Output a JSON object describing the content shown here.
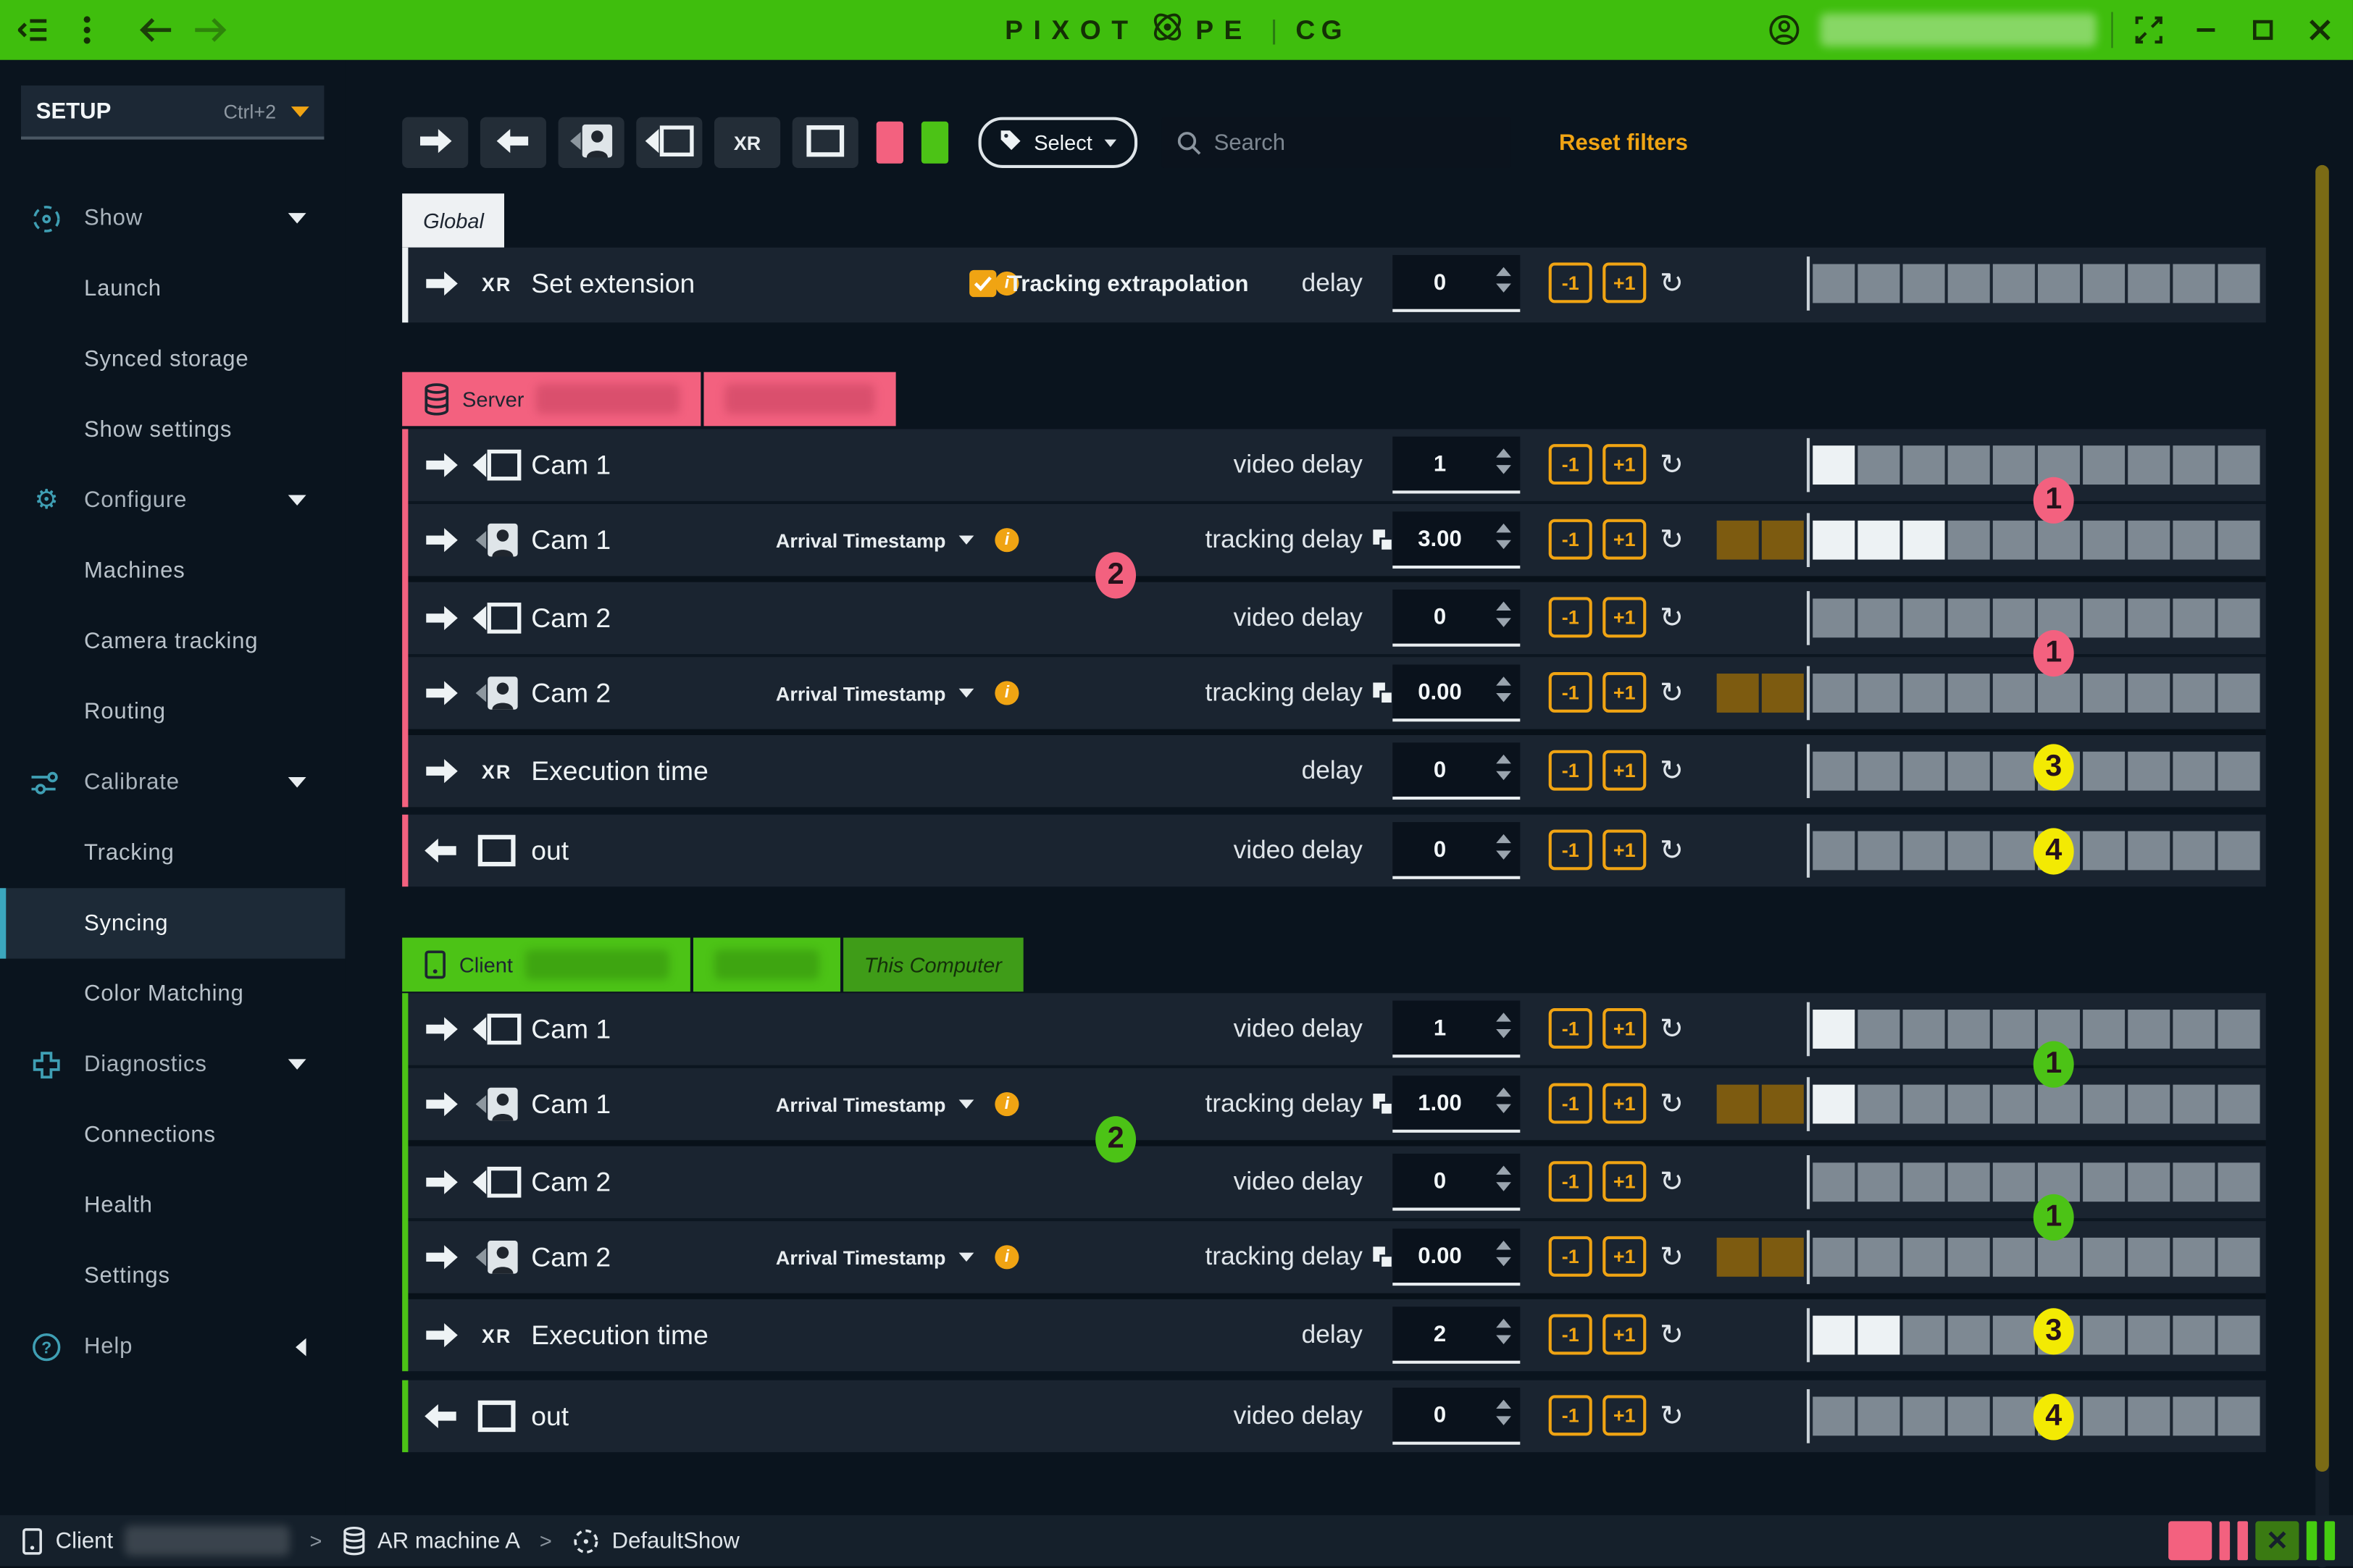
{
  "palette": {
    "topbar_green": "#3FBE0D",
    "amber": "#F0A413",
    "pink": "#F3617F",
    "green": "#4CC316",
    "dark_green_tab": "#3F9C18",
    "yellow_badge": "#F3EA03",
    "brown_block": "#7D5B10",
    "gray_block": "#7E8993",
    "white_block": "#EDF2F4",
    "card_bg": "#1A2430"
  },
  "titlebar": {
    "logo_pre": "PIXOT",
    "logo_post": "PE",
    "divider": "|",
    "product": "CG",
    "user_redacted": true
  },
  "sidebar": {
    "workspace": {
      "label": "SETUP",
      "shortcut": "Ctrl+2"
    },
    "items": [
      {
        "kind": "group",
        "icon": "show-icon",
        "label": "Show",
        "expanded": true
      },
      {
        "kind": "item",
        "label": "Launch"
      },
      {
        "kind": "item",
        "label": "Synced storage"
      },
      {
        "kind": "item",
        "label": "Show settings"
      },
      {
        "kind": "group",
        "icon": "gear-icon",
        "label": "Configure",
        "expanded": true
      },
      {
        "kind": "item",
        "label": "Machines"
      },
      {
        "kind": "item",
        "label": "Camera tracking"
      },
      {
        "kind": "item",
        "label": "Routing"
      },
      {
        "kind": "group",
        "icon": "sliders-icon",
        "label": "Calibrate",
        "expanded": true
      },
      {
        "kind": "item",
        "label": "Tracking"
      },
      {
        "kind": "item",
        "label": "Syncing",
        "active": true
      },
      {
        "kind": "item",
        "label": "Color Matching"
      },
      {
        "kind": "group",
        "icon": "diagnostics-icon",
        "label": "Diagnostics",
        "expanded": true
      },
      {
        "kind": "item",
        "label": "Connections"
      },
      {
        "kind": "item",
        "label": "Health"
      },
      {
        "kind": "item",
        "label": "Settings"
      },
      {
        "kind": "group",
        "icon": "help-icon",
        "label": "Help",
        "expanded": false
      }
    ]
  },
  "toolbar": {
    "filter_buttons": [
      "forward-arrow-filter",
      "back-arrow-filter",
      "camera-tracking-filter",
      "video-camera-filter",
      "xr-filter",
      "out-filter"
    ],
    "xr_label": "XR",
    "swatches": [
      "#F3617F",
      "#4CC316"
    ],
    "select_label": "Select",
    "search_placeholder": "Search",
    "reset_label": "Reset filters"
  },
  "global_section": {
    "tab": "Global",
    "row": {
      "dir": "right",
      "type_label": "XR",
      "label": "Set extension",
      "info": true,
      "checkbox_label": "Tracking extrapolation",
      "checked": true,
      "delay_label": "delay",
      "value": "0",
      "pre": 0,
      "filled": 0,
      "total": 10
    }
  },
  "sections": [
    {
      "id": "server",
      "accent": "#F3617F",
      "tabs": [
        {
          "icon": "database-icon",
          "label": "Server",
          "redacted": true,
          "redact_w": 96
        },
        {
          "label": "",
          "redacted": true,
          "redact_w": 100
        }
      ],
      "rows": [
        {
          "kind": "video",
          "dir": "right",
          "icon": "video-camera-icon",
          "label": "Cam 1",
          "delay_label": "video delay",
          "value": "1",
          "pre": 0,
          "filled": 1
        },
        {
          "kind": "tracking",
          "dir": "right",
          "icon": "camera-tracking-icon",
          "label": "Cam 1",
          "dropdown": "Arrival Timestamp",
          "info": true,
          "delay_label": "tracking delay",
          "copy": true,
          "value": "3.00",
          "pre": 2,
          "filled": 3
        },
        {
          "kind": "video",
          "dir": "right",
          "icon": "video-camera-icon",
          "label": "Cam 2",
          "delay_label": "video delay",
          "value": "0",
          "pre": 0,
          "filled": 0
        },
        {
          "kind": "tracking",
          "dir": "right",
          "icon": "camera-tracking-icon",
          "label": "Cam 2",
          "dropdown": "Arrival Timestamp",
          "info": true,
          "delay_label": "tracking delay",
          "copy": true,
          "value": "0.00",
          "pre": 2,
          "filled": 0
        },
        {
          "kind": "exec",
          "dir": "right",
          "type_label": "XR",
          "label": "Execution time",
          "delay_label": "delay",
          "value": "0",
          "pre": 0,
          "filled": 0
        }
      ],
      "out_row": {
        "dir": "left",
        "icon": "out-rect-icon",
        "label": "out",
        "delay_label": "video delay",
        "value": "0",
        "pre": 0,
        "filled": 0
      },
      "badges": [
        {
          "n": "1",
          "slot": "right1",
          "color": "pink"
        },
        {
          "n": "2",
          "slot": "mid1",
          "color": "pink"
        },
        {
          "n": "1",
          "slot": "right2",
          "color": "pink"
        },
        {
          "n": "3",
          "slot": "exec",
          "color": "yellow"
        },
        {
          "n": "4",
          "slot": "out",
          "color": "yellow"
        }
      ]
    },
    {
      "id": "client",
      "accent": "#4CC316",
      "tabs": [
        {
          "icon": "client-icon",
          "label": "Client",
          "redacted": true,
          "redact_w": 96
        },
        {
          "label": "",
          "redacted": true,
          "redact_w": 70
        },
        {
          "label": "This Computer",
          "variant": "darkgreen"
        }
      ],
      "rows": [
        {
          "kind": "video",
          "dir": "right",
          "icon": "video-camera-icon",
          "label": "Cam 1",
          "delay_label": "video delay",
          "value": "1",
          "pre": 0,
          "filled": 1
        },
        {
          "kind": "tracking",
          "dir": "right",
          "icon": "camera-tracking-icon",
          "label": "Cam 1",
          "dropdown": "Arrival Timestamp",
          "info": true,
          "delay_label": "tracking delay",
          "copy": true,
          "value": "1.00",
          "pre": 2,
          "filled": 1
        },
        {
          "kind": "video",
          "dir": "right",
          "icon": "video-camera-icon",
          "label": "Cam 2",
          "delay_label": "video delay",
          "value": "0",
          "pre": 0,
          "filled": 0
        },
        {
          "kind": "tracking",
          "dir": "right",
          "icon": "camera-tracking-icon",
          "label": "Cam 2",
          "dropdown": "Arrival Timestamp",
          "info": true,
          "delay_label": "tracking delay",
          "copy": true,
          "value": "0.00",
          "pre": 2,
          "filled": 0
        },
        {
          "kind": "exec",
          "dir": "right",
          "type_label": "XR",
          "label": "Execution time",
          "delay_label": "delay",
          "value": "2",
          "pre": 0,
          "filled": 2
        }
      ],
      "out_row": {
        "dir": "left",
        "icon": "out-rect-icon",
        "label": "out",
        "delay_label": "video delay",
        "value": "0",
        "pre": 0,
        "filled": 0
      },
      "badges": [
        {
          "n": "1",
          "slot": "right1",
          "color": "green"
        },
        {
          "n": "2",
          "slot": "mid1",
          "color": "green"
        },
        {
          "n": "1",
          "slot": "right2",
          "color": "green"
        },
        {
          "n": "3",
          "slot": "exec",
          "color": "yellow"
        },
        {
          "n": "4",
          "slot": "out",
          "color": "yellow"
        }
      ]
    }
  ],
  "step_buttons": {
    "minus": "-1",
    "plus": "+1"
  },
  "bottombar": {
    "breadcrumb": [
      {
        "icon": "client-icon",
        "label": "Client",
        "redacted": true
      },
      {
        "icon": "database-icon",
        "label": "AR machine A"
      },
      {
        "icon": "show-icon",
        "label": "DefaultShow"
      }
    ],
    "separator": ">",
    "status_lights": [
      {
        "type": "square",
        "color": "#F3617F"
      },
      {
        "type": "bar",
        "color": "#F3617F"
      },
      {
        "type": "bar",
        "color": "#F3617F"
      },
      {
        "type": "square-x",
        "color": "#3A7A12"
      },
      {
        "type": "bar",
        "color": "#45CC10"
      },
      {
        "type": "bar",
        "color": "#45CC10"
      }
    ]
  }
}
